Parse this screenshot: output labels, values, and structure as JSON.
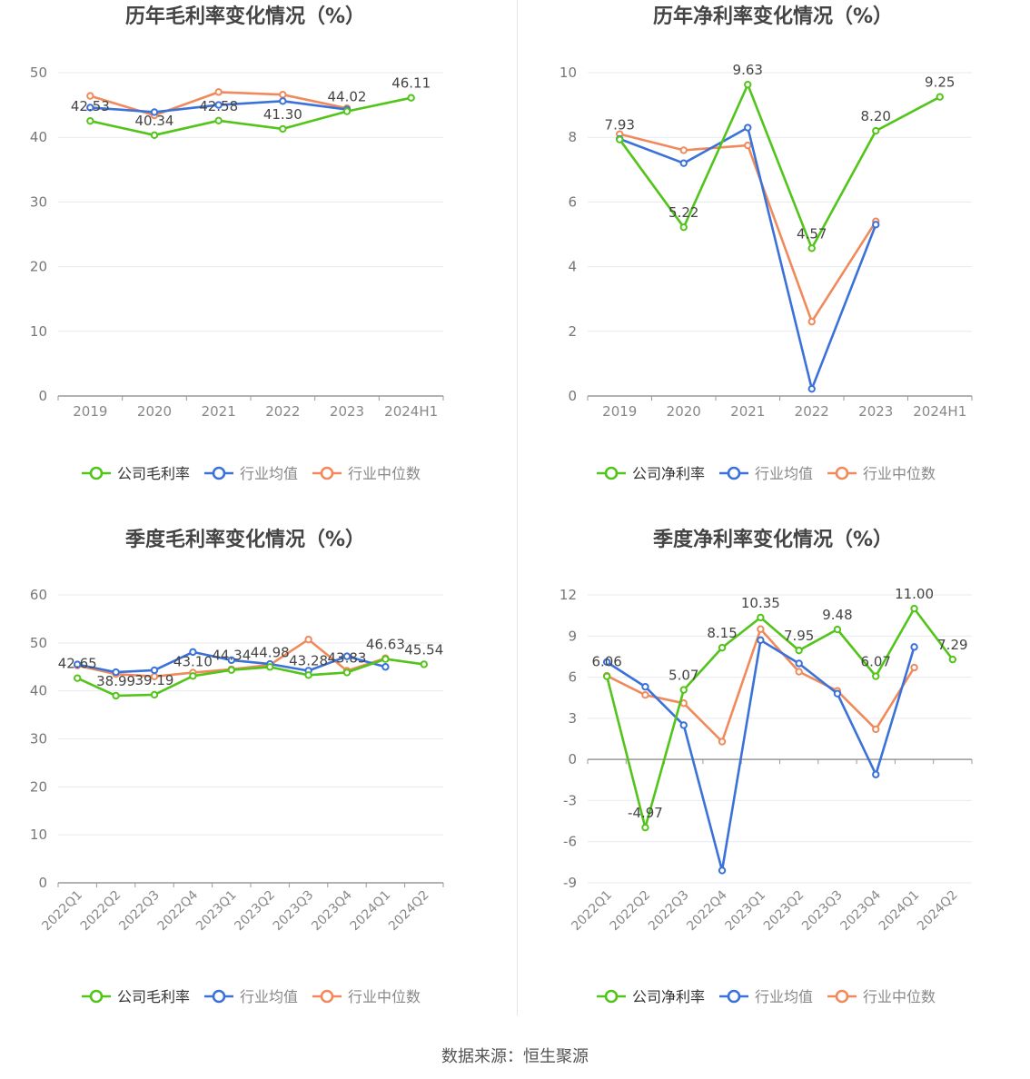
{
  "source_text": "数据来源：恒生聚源",
  "colors": {
    "company": "#52c41a",
    "avg": "#3b72d9",
    "median": "#f08a5d"
  },
  "chart_data": [
    {
      "type": "line",
      "title": "历年毛利率变化情况（%）",
      "categories": [
        "2019",
        "2020",
        "2021",
        "2022",
        "2023",
        "2024H1"
      ],
      "ylim": [
        0,
        50
      ],
      "yticks": [
        0,
        10,
        20,
        30,
        40,
        50
      ],
      "legend_position": "bottom-center",
      "series": [
        {
          "name": "公司毛利率",
          "values": [
            42.53,
            40.34,
            42.58,
            41.3,
            44.02,
            46.11
          ],
          "labels": [
            "42.53",
            "40.34",
            "42.58",
            "41.30",
            "44.02",
            "46.11"
          ]
        },
        {
          "name": "行业均值",
          "values": [
            44.6,
            43.9,
            45.0,
            45.6,
            44.3,
            null
          ]
        },
        {
          "name": "行业中位数",
          "values": [
            46.4,
            43.4,
            47.0,
            46.6,
            44.5,
            null
          ]
        }
      ]
    },
    {
      "type": "line",
      "title": "历年净利率变化情况（%）",
      "categories": [
        "2019",
        "2020",
        "2021",
        "2022",
        "2023",
        "2024H1"
      ],
      "ylim": [
        0,
        10
      ],
      "yticks": [
        0,
        2,
        4,
        6,
        8,
        10
      ],
      "legend_position": "bottom-center",
      "series": [
        {
          "name": "公司净利率",
          "values": [
            7.93,
            5.22,
            9.63,
            4.57,
            8.2,
            9.25
          ],
          "labels": [
            "7.93",
            "5.22",
            "9.63",
            "4.57",
            "8.20",
            "9.25"
          ]
        },
        {
          "name": "行业均值",
          "values": [
            7.95,
            7.2,
            8.3,
            0.22,
            5.3,
            null
          ]
        },
        {
          "name": "行业中位数",
          "values": [
            8.1,
            7.6,
            7.75,
            2.3,
            5.4,
            null
          ]
        }
      ]
    },
    {
      "type": "line",
      "title": "季度毛利率变化情况（%）",
      "categories": [
        "2022Q1",
        "2022Q2",
        "2022Q3",
        "2022Q4",
        "2023Q1",
        "2023Q2",
        "2023Q3",
        "2023Q4",
        "2024Q1",
        "2024Q2"
      ],
      "ylim": [
        0,
        60
      ],
      "yticks": [
        0,
        10,
        20,
        30,
        40,
        50,
        60
      ],
      "legend_position": "bottom-center",
      "series": [
        {
          "name": "公司毛利率",
          "values": [
            42.65,
            38.99,
            39.19,
            43.1,
            44.34,
            44.98,
            43.28,
            43.83,
            46.63,
            45.54
          ],
          "labels": [
            "42.65",
            "38.99",
            "39.19",
            "43.10",
            "44.34",
            "44.98",
            "43.28",
            "43.83",
            "46.63",
            "45.54"
          ]
        },
        {
          "name": "行业均值",
          "values": [
            45.5,
            43.9,
            44.3,
            48.1,
            46.4,
            45.6,
            44.2,
            47.2,
            45.0,
            null
          ]
        },
        {
          "name": "行业中位数",
          "values": [
            45.3,
            43.5,
            43.0,
            43.8,
            44.5,
            45.4,
            50.7,
            44.2,
            46.8,
            null
          ]
        }
      ]
    },
    {
      "type": "line",
      "title": "季度净利率变化情况（%）",
      "categories": [
        "2022Q1",
        "2022Q2",
        "2022Q3",
        "2022Q4",
        "2023Q1",
        "2023Q2",
        "2023Q3",
        "2023Q4",
        "2024Q1",
        "2024Q2"
      ],
      "ylim": [
        -9,
        12
      ],
      "yticks": [
        -9,
        -6,
        -3,
        0,
        3,
        6,
        9,
        12
      ],
      "legend_position": "bottom-center",
      "series": [
        {
          "name": "公司净利率",
          "values": [
            6.06,
            -4.97,
            5.07,
            8.15,
            10.35,
            7.95,
            9.48,
            6.07,
            11.0,
            7.29
          ],
          "labels": [
            "6.06",
            "-4.97",
            "5.07",
            "8.15",
            "10.35",
            "7.95",
            "9.48",
            "6.07",
            "11.00",
            "7.29"
          ]
        },
        {
          "name": "行业均值",
          "values": [
            7.1,
            5.3,
            2.5,
            -8.1,
            8.7,
            7.0,
            4.8,
            -1.1,
            8.2,
            null
          ]
        },
        {
          "name": "行业中位数",
          "values": [
            6.1,
            4.7,
            4.1,
            1.3,
            9.5,
            6.4,
            5.0,
            2.2,
            6.7,
            null
          ]
        }
      ]
    }
  ]
}
